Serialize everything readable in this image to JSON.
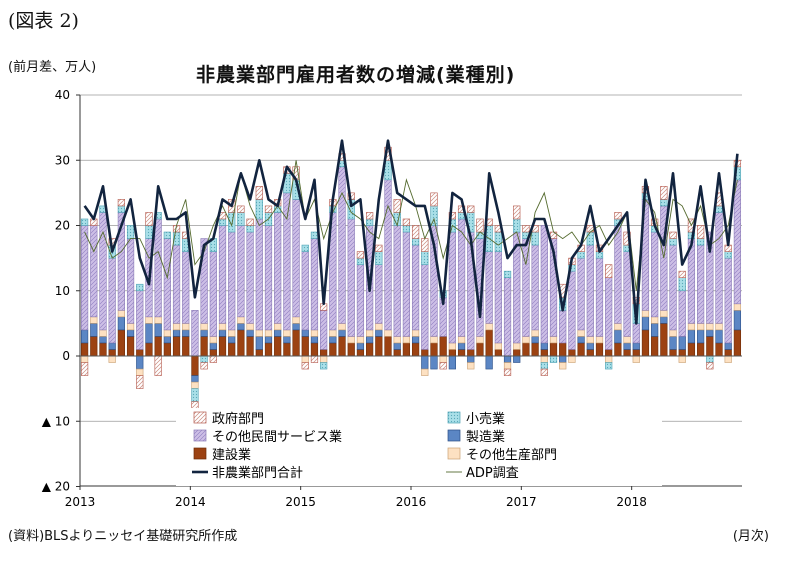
{
  "figure_label": "(図表 2)",
  "unit_label": "(前月差、万人)",
  "source": "(資料)BLSよりニッセイ基礎研究所作成",
  "x_unit": "(月次)",
  "chart_data": {
    "type": "bar",
    "title": "非農業部門雇用者数の増減(業種別)",
    "ylim": [
      -20,
      40
    ],
    "yticks": [
      -20,
      -10,
      0,
      10,
      20,
      30,
      40
    ],
    "ytick_labels": [
      "▲ 20",
      "▲ 10",
      "0",
      "10",
      "20",
      "30",
      "40"
    ],
    "year_labels": [
      "2013",
      "2014",
      "2015",
      "2016",
      "2017",
      "2018"
    ],
    "year_start_index": [
      0,
      12,
      24,
      36,
      48,
      60
    ],
    "months": 72,
    "grid": true,
    "colors": {
      "government": "#f3dcd8",
      "retail": "#a9dfe8",
      "other_private_services": "#cdbfe6",
      "manufacturing": "#5b86c4",
      "construction": "#9c4212",
      "other_goods": "#fde1c2",
      "total": "#12243f",
      "adp": "#556b2f"
    },
    "legend": [
      {
        "key": "government",
        "label": "政府部門"
      },
      {
        "key": "retail",
        "label": "小売業"
      },
      {
        "key": "other_private_services",
        "label": "その他民間サービス業"
      },
      {
        "key": "manufacturing",
        "label": "製造業"
      },
      {
        "key": "construction",
        "label": "建設業"
      },
      {
        "key": "other_goods",
        "label": "その他生産部門"
      },
      {
        "key": "total",
        "label": "非農業部門合計"
      },
      {
        "key": "adp",
        "label": "ADP調査"
      }
    ],
    "series": {
      "government": [
        -2,
        1,
        0,
        1,
        1,
        0,
        -2,
        2,
        -3,
        0,
        1,
        1,
        -3,
        -1,
        -1,
        1,
        2,
        1,
        1,
        2,
        1,
        1,
        1,
        2,
        -1,
        -1,
        1,
        1,
        1,
        1,
        1,
        1,
        1,
        2,
        2,
        1,
        2,
        2,
        2,
        -1,
        1,
        1,
        1,
        2,
        1,
        1,
        -1,
        2,
        1,
        1,
        -1,
        1,
        2,
        1,
        1,
        1,
        1,
        2,
        1,
        2,
        1,
        1,
        1,
        2,
        1,
        1,
        2,
        2,
        -1,
        2,
        1,
        1
      ],
      "retail": [
        1,
        0,
        1,
        2,
        1,
        2,
        1,
        2,
        1,
        1,
        2,
        2,
        -2,
        -1,
        2,
        1,
        3,
        2,
        1,
        3,
        2,
        1,
        3,
        3,
        1,
        1,
        -1,
        1,
        1,
        3,
        1,
        1,
        2,
        3,
        2,
        1,
        1,
        2,
        3,
        1,
        2,
        1,
        3,
        1,
        4,
        3,
        1,
        2,
        1,
        2,
        -1,
        -1,
        2,
        1,
        1,
        2,
        1,
        -1,
        1,
        1,
        3,
        1,
        1,
        1,
        1,
        2,
        1,
        1,
        -1,
        1,
        1,
        2
      ],
      "other_private_services": [
        16,
        14,
        18,
        13,
        15,
        13,
        9,
        12,
        15,
        14,
        12,
        11,
        7,
        13,
        13,
        15,
        15,
        14,
        14,
        17,
        16,
        17,
        21,
        18,
        12,
        14,
        6,
        18,
        24,
        18,
        11,
        16,
        9,
        23,
        17,
        16,
        13,
        13,
        17,
        6,
        17,
        18,
        18,
        15,
        11,
        14,
        12,
        17,
        15,
        13,
        18,
        15,
        5,
        12,
        11,
        14,
        12,
        11,
        15,
        13,
        3,
        17,
        13,
        16,
        13,
        7,
        13,
        12,
        14,
        17,
        13,
        19
      ],
      "manufacturing": [
        2,
        2,
        1,
        1,
        2,
        1,
        -2,
        3,
        2,
        1,
        1,
        1,
        -1,
        1,
        1,
        1,
        1,
        1,
        1,
        2,
        1,
        1,
        1,
        1,
        1,
        1,
        0,
        1,
        1,
        0,
        1,
        1,
        1,
        0,
        1,
        0,
        1,
        -2,
        -2,
        0,
        -2,
        1,
        -1,
        0,
        -2,
        0,
        -1,
        -1,
        0,
        1,
        1,
        0,
        -1,
        0,
        1,
        1,
        0,
        0,
        2,
        1,
        1,
        2,
        2,
        1,
        2,
        2,
        2,
        2,
        1,
        2,
        1,
        3
      ],
      "construction": [
        2,
        3,
        2,
        1,
        4,
        3,
        1,
        2,
        3,
        2,
        3,
        3,
        -3,
        3,
        1,
        3,
        2,
        4,
        3,
        1,
        2,
        3,
        2,
        4,
        3,
        2,
        1,
        2,
        3,
        2,
        1,
        2,
        3,
        3,
        1,
        2,
        2,
        1,
        2,
        3,
        1,
        1,
        1,
        2,
        4,
        1,
        0,
        1,
        2,
        2,
        1,
        2,
        2,
        1,
        2,
        1,
        2,
        1,
        2,
        1,
        1,
        4,
        3,
        5,
        1,
        1,
        2,
        2,
        3,
        2,
        1,
        4
      ],
      "other_goods": [
        -1,
        1,
        1,
        -1,
        1,
        1,
        -1,
        1,
        1,
        1,
        1,
        1,
        -1,
        1,
        1,
        1,
        1,
        1,
        1,
        1,
        1,
        1,
        1,
        1,
        -1,
        1,
        -1,
        1,
        1,
        1,
        1,
        1,
        1,
        1,
        1,
        1,
        1,
        -1,
        1,
        -1,
        1,
        1,
        -1,
        1,
        1,
        1,
        -1,
        1,
        1,
        1,
        -1,
        1,
        -1,
        -1,
        1,
        1,
        1,
        -1,
        1,
        1,
        -1,
        1,
        1,
        1,
        1,
        -1,
        1,
        1,
        1,
        1,
        -1,
        1
      ],
      "total": [
        23,
        21,
        26,
        16,
        20,
        24,
        15,
        11,
        26,
        21,
        21,
        22,
        9,
        17,
        18,
        24,
        23,
        28,
        24,
        30,
        24,
        23,
        29,
        27,
        21,
        27,
        8,
        24,
        33,
        23,
        24,
        10,
        24,
        33,
        25,
        24,
        23,
        23,
        17,
        8,
        25,
        24,
        18,
        6,
        28,
        22,
        15,
        17,
        17,
        21,
        21,
        16,
        7,
        15,
        17,
        23,
        16,
        18,
        20,
        22,
        5,
        27,
        20,
        17,
        28,
        14,
        17,
        26,
        16,
        28,
        17,
        31
      ],
      "adp": [
        19,
        16,
        19,
        15,
        16,
        18,
        18,
        15,
        16,
        12,
        20,
        24,
        14,
        16,
        20,
        23,
        20,
        28,
        23,
        20,
        21,
        23,
        21,
        30,
        21,
        24,
        18,
        22,
        25,
        22,
        21,
        19,
        18,
        23,
        20,
        27,
        23,
        18,
        21,
        15,
        20,
        19,
        17,
        19,
        18,
        17,
        18,
        19,
        14,
        22,
        25,
        19,
        18,
        19,
        17,
        19,
        20,
        17,
        19,
        22,
        10,
        24,
        22,
        15,
        24,
        23,
        20,
        23,
        17,
        18,
        20,
        27
      ]
    }
  }
}
